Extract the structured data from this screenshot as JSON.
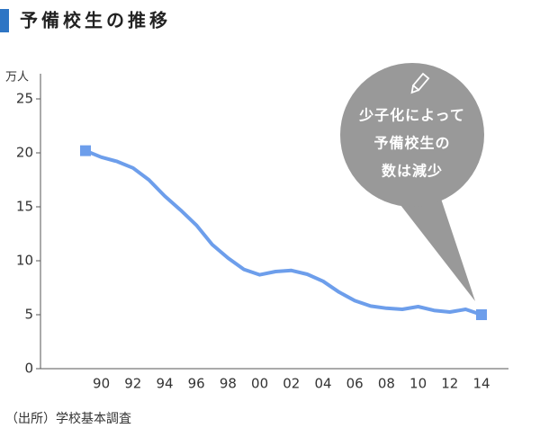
{
  "chart_data": {
    "type": "line",
    "title": "予備校生の推移",
    "y_unit": "万人",
    "source": "（出所）学校基本調査",
    "annotation": [
      "少子化によって",
      "予備校生の",
      "数は減少"
    ],
    "categories": [
      null,
      "90",
      null,
      "92",
      null,
      "94",
      null,
      "96",
      null,
      "98",
      null,
      "00",
      null,
      "02",
      null,
      "04",
      null,
      "06",
      null,
      "08",
      null,
      "10",
      null,
      "12",
      null,
      "14"
    ],
    "values": [
      20.2,
      19.6,
      19.2,
      18.6,
      17.5,
      16.0,
      14.7,
      13.3,
      11.5,
      10.25,
      9.2,
      8.7,
      9.0,
      9.1,
      8.75,
      8.1,
      7.1,
      6.3,
      5.8,
      5.6,
      5.5,
      5.75,
      5.4,
      5.25,
      5.5,
      5.0
    ],
    "color": "#6d9eeb",
    "ylim": [
      0,
      25
    ],
    "yticks": [
      0,
      5,
      10,
      15,
      20,
      25
    ],
    "endpoint_markers": true
  }
}
